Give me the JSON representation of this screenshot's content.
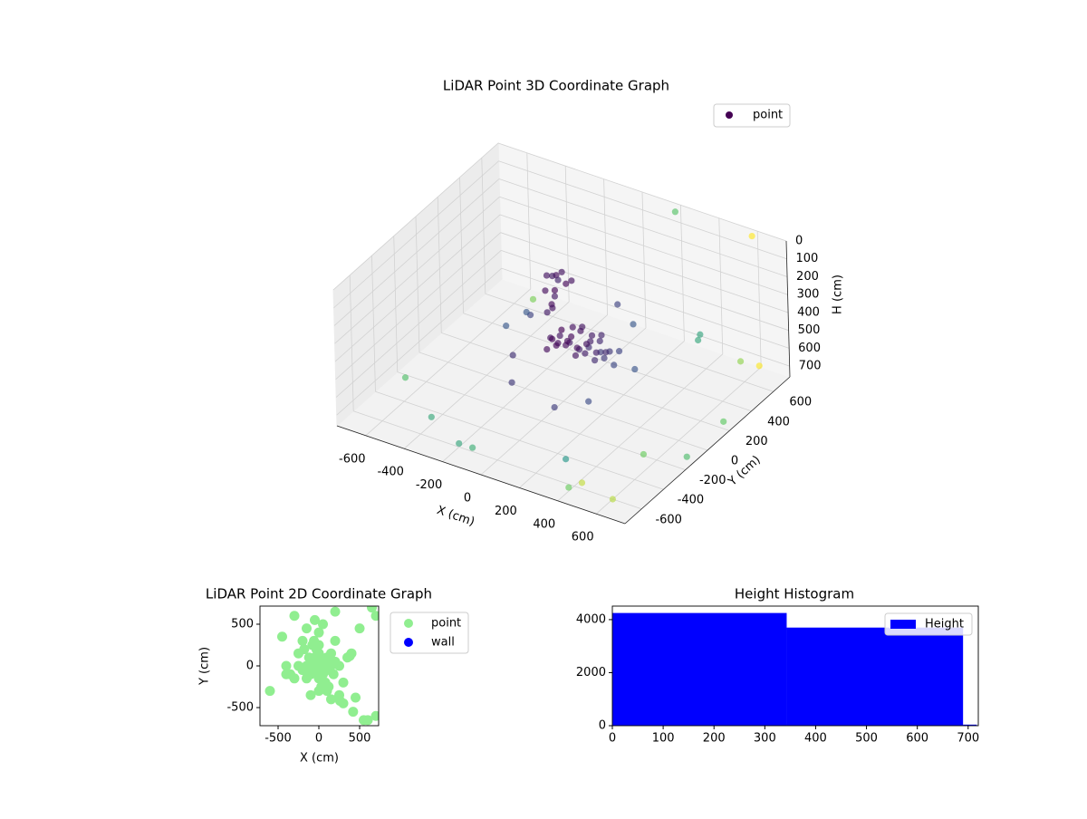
{
  "chart_data": [
    {
      "type": "scatter3d",
      "title": "LiDAR Point 3D Coordinate Graph",
      "xlabel": "X (cm)",
      "ylabel": "Y (cm)",
      "zlabel": "H (cm)",
      "xlim": [
        -750,
        750
      ],
      "ylim": [
        -750,
        750
      ],
      "zlim": [
        0,
        760
      ],
      "zinvert": true,
      "xticks": [
        -600,
        -400,
        -200,
        0,
        200,
        400,
        600
      ],
      "yticks": [
        -600,
        -400,
        -200,
        0,
        200,
        400,
        600
      ],
      "zticks": [
        0,
        100,
        200,
        300,
        400,
        500,
        600,
        700
      ],
      "grid": true,
      "legend": "upper right",
      "colormap": "viridis",
      "series": [
        {
          "name": "point",
          "color": "#440154",
          "x": [
            0,
            50,
            100,
            150,
            200,
            250,
            0,
            50,
            100,
            150,
            200,
            250,
            0,
            50,
            100,
            150,
            200,
            250,
            0,
            50,
            100,
            150,
            200,
            0,
            50,
            100,
            150,
            -50,
            -50,
            -50,
            300,
            300,
            -100,
            -50,
            0,
            -100,
            -50,
            0,
            -80,
            -30,
            -100,
            -60,
            -80,
            -120,
            -90,
            -250,
            -300,
            -350,
            -200,
            150,
            200,
            -150,
            100,
            250,
            350,
            600,
            200,
            -650,
            -400,
            -200,
            500,
            650,
            700,
            550,
            400,
            -500,
            700,
            650,
            300,
            -100,
            720,
            600,
            450
          ],
          "y": [
            -100,
            -100,
            -100,
            -100,
            -100,
            -80,
            -50,
            -50,
            -50,
            -50,
            -50,
            -50,
            0,
            0,
            0,
            0,
            0,
            0,
            50,
            50,
            50,
            50,
            50,
            100,
            100,
            100,
            100,
            -50,
            0,
            50,
            -50,
            0,
            50,
            50,
            50,
            100,
            100,
            100,
            0,
            0,
            150,
            20,
            60,
            80,
            100,
            150,
            200,
            100,
            -100,
            250,
            300,
            -200,
            -250,
            -200,
            50,
            700,
            700,
            -300,
            -500,
            -600,
            -700,
            -400,
            400,
            300,
            -650,
            600,
            -100,
            650,
            -500,
            -650,
            200,
            -600,
            450
          ],
          "z": [
            350,
            320,
            340,
            360,
            330,
            350,
            420,
            400,
            440,
            410,
            430,
            400,
            360,
            380,
            330,
            370,
            350,
            390,
            450,
            470,
            430,
            460,
            440,
            400,
            380,
            410,
            390,
            460,
            430,
            480,
            420,
            370,
            120,
            100,
            130,
            150,
            110,
            140,
            170,
            150,
            200,
            250,
            300,
            350,
            260,
            450,
            480,
            520,
            520,
            300,
            420,
            600,
            620,
            560,
            480,
            0,
            10,
            700,
            720,
            740,
            650,
            600,
            500,
            350,
            740,
            700,
            760,
            680,
            700,
            700,
            720,
            760,
            500
          ]
        }
      ]
    },
    {
      "type": "scatter",
      "title": "LiDAR Point 2D Coordinate Graph",
      "xlabel": "X (cm)",
      "ylabel": "Y (cm)",
      "xlim": [
        -722,
        733
      ],
      "ylim": [
        -717,
        717
      ],
      "xticks": [
        -500,
        0,
        500
      ],
      "yticks": [
        -500,
        0,
        500
      ],
      "legend": "outside right",
      "series": [
        {
          "name": "point",
          "color": "#90ee90",
          "x": [
            0,
            50,
            -50,
            100,
            -100,
            150,
            -150,
            200,
            -200,
            0,
            0,
            50,
            -50,
            100,
            -100,
            150,
            -150,
            250,
            -250,
            0,
            30,
            -30,
            80,
            -80,
            120,
            -120,
            180,
            -180,
            60,
            -60,
            0,
            200,
            -200,
            300,
            -300,
            100,
            -100,
            0,
            250,
            -250,
            350,
            -350,
            400,
            -400,
            150,
            -50,
            50,
            300,
            -150,
            450,
            500,
            -450,
            550,
            600,
            700,
            -600,
            420,
            380,
            -300,
            260,
            650,
            700,
            -400,
            200
          ],
          "y": [
            0,
            50,
            -50,
            100,
            -100,
            0,
            0,
            50,
            -50,
            150,
            -150,
            -100,
            100,
            -50,
            50,
            150,
            -150,
            0,
            0,
            250,
            -250,
            200,
            -200,
            250,
            -250,
            100,
            -100,
            200,
            -200,
            300,
            -300,
            300,
            300,
            -200,
            -150,
            -300,
            -350,
            400,
            -350,
            150,
            100,
            -100,
            150,
            0,
            -400,
            550,
            500,
            -450,
            450,
            -380,
            450,
            350,
            -650,
            -650,
            -600,
            -300,
            -550,
            120,
            600,
            -420,
            700,
            600,
            -100,
            650
          ]
        },
        {
          "name": "wall",
          "color": "#0000ff",
          "x": [],
          "y": []
        }
      ]
    },
    {
      "type": "histogram",
      "title": "Height Histogram",
      "xlim": [
        0,
        720
      ],
      "ylim": [
        0,
        4510
      ],
      "xticks": [
        0,
        100,
        200,
        300,
        400,
        500,
        600,
        700
      ],
      "yticks": [
        0,
        2000,
        4000
      ],
      "legend": "upper right",
      "bins": [
        0,
        343,
        690,
        717
      ],
      "series": [
        {
          "name": "Height",
          "color": "#0000ff",
          "values": [
            4250,
            3700,
            40
          ]
        }
      ]
    }
  ]
}
